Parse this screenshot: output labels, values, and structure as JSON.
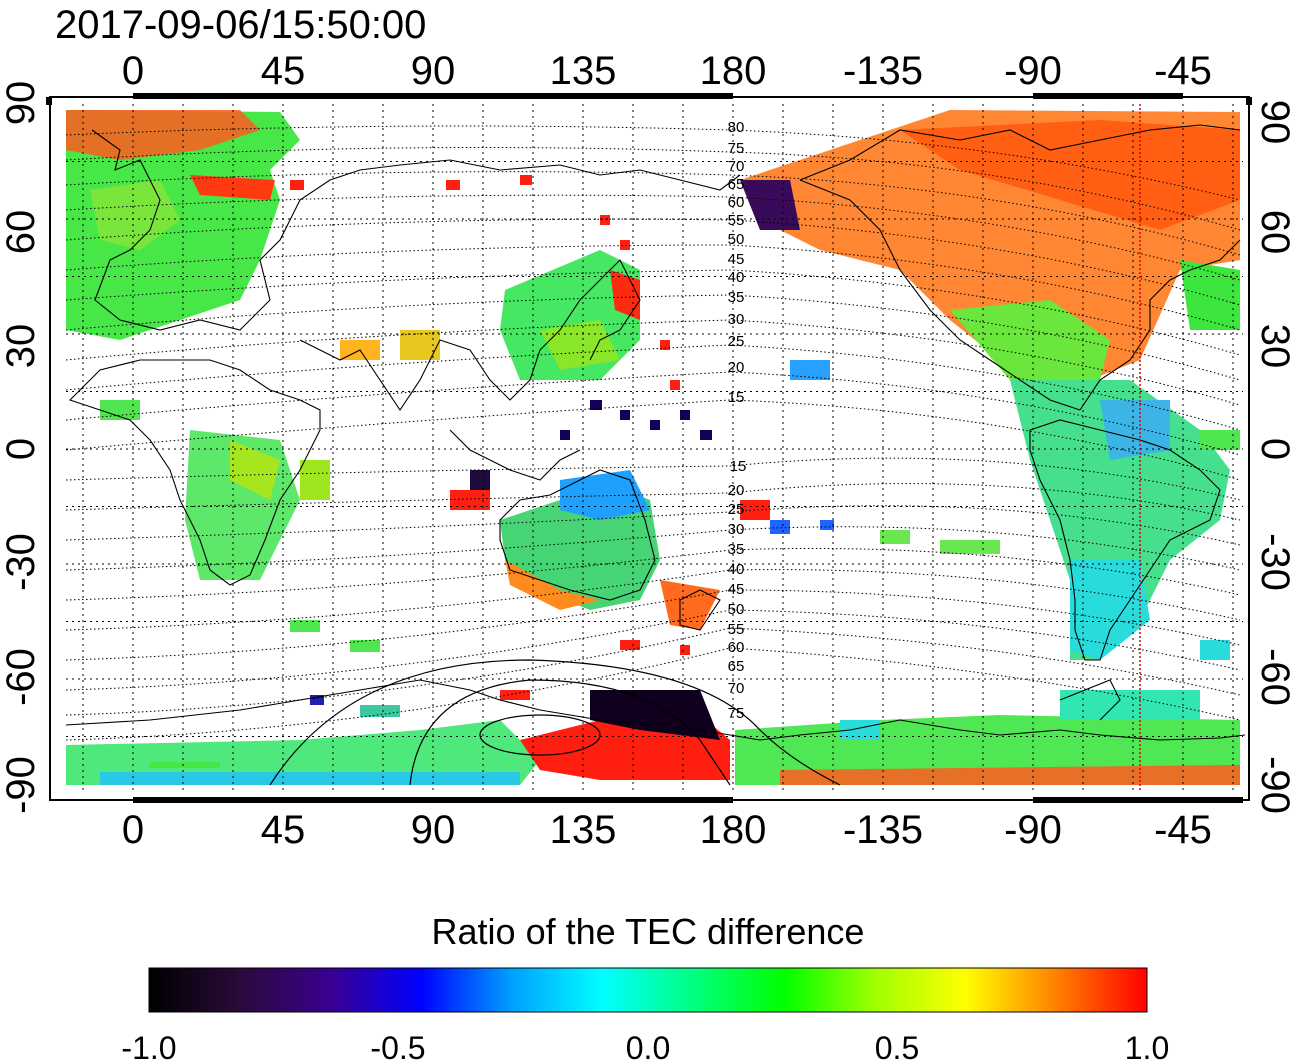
{
  "title": "2017-09-06/15:50:00",
  "map": {
    "projection": "equirectangular",
    "lon_min": -25,
    "lon_max": 335,
    "lat_min": -90,
    "lat_max": 90,
    "x_ticks": [
      0,
      45,
      90,
      135,
      180,
      -135,
      -90,
      -45
    ],
    "y_ticks": [
      90,
      60,
      30,
      0,
      -30,
      -60,
      -90
    ],
    "grid": "dotted every 15 degrees",
    "terminator_line_lon": -62,
    "terminator_color": "#e00000",
    "mlat_labels_north": [
      "80",
      "75",
      "70",
      "65",
      "60",
      "55",
      "50",
      "45",
      "40",
      "35",
      "30",
      "25",
      "20",
      "15"
    ],
    "mlat_labels_south": [
      "15",
      "20",
      "25",
      "30",
      "35",
      "40",
      "45",
      "50",
      "55",
      "60",
      "65",
      "70",
      "75"
    ]
  },
  "colorbar": {
    "title": "Ratio of the TEC difference",
    "ticks": [
      "-1.0",
      "-0.5",
      "0.0",
      "0.5",
      "1.0"
    ],
    "min": -1.0,
    "max": 1.0,
    "colors": [
      "#000000",
      "#2a0a3a",
      "#3a0090",
      "#0000ff",
      "#00a0ff",
      "#00ffff",
      "#00ff80",
      "#00ff00",
      "#a0ff00",
      "#ffff00",
      "#ff8000",
      "#ff0000"
    ]
  }
}
